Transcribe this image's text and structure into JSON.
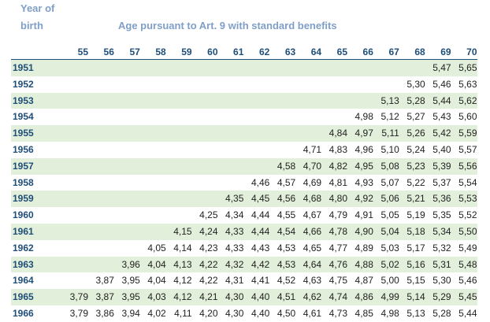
{
  "header": {
    "year_label": "Year of",
    "birth_label": "birth",
    "title": "Age pursuant to Art. 9 with standard benefits"
  },
  "ages": [
    "55",
    "56",
    "57",
    "58",
    "59",
    "60",
    "61",
    "62",
    "63",
    "64",
    "65",
    "66",
    "67",
    "68",
    "69",
    "70"
  ],
  "rows": [
    {
      "year": "1951",
      "values": [
        "",
        "",
        "",
        "",
        "",
        "",
        "",
        "",
        "",
        "",
        "",
        "",
        "",
        "",
        "5,47",
        "5,65"
      ]
    },
    {
      "year": "1952",
      "values": [
        "",
        "",
        "",
        "",
        "",
        "",
        "",
        "",
        "",
        "",
        "",
        "",
        "",
        "5,30",
        "5,46",
        "5,63"
      ]
    },
    {
      "year": "1953",
      "values": [
        "",
        "",
        "",
        "",
        "",
        "",
        "",
        "",
        "",
        "",
        "",
        "",
        "5,13",
        "5,28",
        "5,44",
        "5,62"
      ]
    },
    {
      "year": "1954",
      "values": [
        "",
        "",
        "",
        "",
        "",
        "",
        "",
        "",
        "",
        "",
        "",
        "4,98",
        "5,12",
        "5,27",
        "5,43",
        "5,60"
      ]
    },
    {
      "year": "1955",
      "values": [
        "",
        "",
        "",
        "",
        "",
        "",
        "",
        "",
        "",
        "",
        "4,84",
        "4,97",
        "5,11",
        "5,26",
        "5,42",
        "5,59"
      ]
    },
    {
      "year": "1956",
      "values": [
        "",
        "",
        "",
        "",
        "",
        "",
        "",
        "",
        "",
        "4,71",
        "4,83",
        "4,96",
        "5,10",
        "5,24",
        "5,40",
        "5,57"
      ]
    },
    {
      "year": "1957",
      "values": [
        "",
        "",
        "",
        "",
        "",
        "",
        "",
        "",
        "4,58",
        "4,70",
        "4,82",
        "4,95",
        "5,08",
        "5,23",
        "5,39",
        "5,56"
      ]
    },
    {
      "year": "1958",
      "values": [
        "",
        "",
        "",
        "",
        "",
        "",
        "",
        "4,46",
        "4,57",
        "4,69",
        "4,81",
        "4,93",
        "5,07",
        "5,22",
        "5,37",
        "5,54"
      ]
    },
    {
      "year": "1959",
      "values": [
        "",
        "",
        "",
        "",
        "",
        "",
        "4,35",
        "4,45",
        "4,56",
        "4,68",
        "4,80",
        "4,92",
        "5,06",
        "5,21",
        "5,36",
        "5,53"
      ]
    },
    {
      "year": "1960",
      "values": [
        "",
        "",
        "",
        "",
        "",
        "4,25",
        "4,34",
        "4,44",
        "4,55",
        "4,67",
        "4,79",
        "4,91",
        "5,05",
        "5,19",
        "5,35",
        "5,52"
      ]
    },
    {
      "year": "1961",
      "values": [
        "",
        "",
        "",
        "",
        "4,15",
        "4,24",
        "4,33",
        "4,44",
        "4,54",
        "4,66",
        "4,78",
        "4,90",
        "5,04",
        "5,18",
        "5,34",
        "5,50"
      ]
    },
    {
      "year": "1962",
      "values": [
        "",
        "",
        "",
        "4,05",
        "4,14",
        "4,23",
        "4,33",
        "4,43",
        "4,53",
        "4,65",
        "4,77",
        "4,89",
        "5,03",
        "5,17",
        "5,32",
        "5,49"
      ]
    },
    {
      "year": "1963",
      "values": [
        "",
        "",
        "3,96",
        "4,04",
        "4,13",
        "4,22",
        "4,32",
        "4,42",
        "4,53",
        "4,64",
        "4,76",
        "4,88",
        "5,02",
        "5,16",
        "5,31",
        "5,48"
      ]
    },
    {
      "year": "1964",
      "values": [
        "",
        "3,87",
        "3,95",
        "4,04",
        "4,12",
        "4,22",
        "4,31",
        "4,41",
        "4,52",
        "4,63",
        "4,75",
        "4,87",
        "5,00",
        "5,15",
        "5,30",
        "5,46"
      ]
    },
    {
      "year": "1965",
      "values": [
        "3,79",
        "3,87",
        "3,95",
        "4,03",
        "4,12",
        "4,21",
        "4,30",
        "4,40",
        "4,51",
        "4,62",
        "4,74",
        "4,86",
        "4,99",
        "5,14",
        "5,29",
        "5,45"
      ]
    },
    {
      "year": "1966",
      "values": [
        "3,79",
        "3,86",
        "3,94",
        "4,02",
        "4,11",
        "4,20",
        "4,30",
        "4,40",
        "4,50",
        "4,61",
        "4,73",
        "4,85",
        "4,98",
        "5,13",
        "5,28",
        "5,44"
      ]
    }
  ]
}
